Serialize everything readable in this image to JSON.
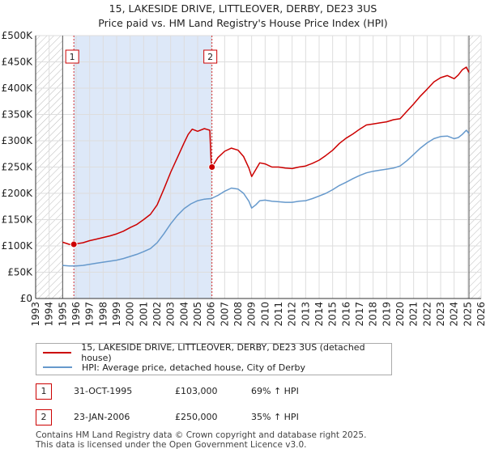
{
  "header": {
    "title_line1": "15, LAKESIDE DRIVE, LITTLEOVER, DERBY, DE23 3US",
    "title_line2": "Price paid vs. HM Land Registry's House Price Index (HPI)"
  },
  "colors": {
    "property": "#cc0000",
    "hpi": "#6699cc",
    "shade": "#dde8f8",
    "hatch": "#bbbbbb",
    "grid": "#dddddd"
  },
  "chart_data": {
    "type": "line",
    "title": "Price paid vs. HM Land Registry's House Price Index (HPI)",
    "xlabel": "",
    "ylabel": "",
    "xlim": [
      1993,
      2026
    ],
    "ylim": [
      0,
      500000
    ],
    "x_ticks": [
      1993,
      1994,
      1995,
      1996,
      1997,
      1998,
      1999,
      2000,
      2001,
      2002,
      2003,
      2004,
      2005,
      2006,
      2007,
      2008,
      2009,
      2010,
      2011,
      2012,
      2013,
      2014,
      2015,
      2016,
      2017,
      2018,
      2019,
      2020,
      2021,
      2022,
      2023,
      2024,
      2025,
      2026
    ],
    "y_ticks": [
      0,
      50000,
      100000,
      150000,
      200000,
      250000,
      300000,
      350000,
      400000,
      450000,
      500000
    ],
    "y_tick_labels": [
      "£0",
      "£50K",
      "£100K",
      "£150K",
      "£200K",
      "£250K",
      "£300K",
      "£350K",
      "£400K",
      "£450K",
      "£500K"
    ],
    "data_start": 1995.0,
    "data_end": 2025.1,
    "shaded_between_sales": [
      1995.83,
      2006.06
    ],
    "series": [
      {
        "name": "15, LAKESIDE DRIVE, LITTLEOVER, DERBY, DE23 3US (detached house)",
        "color": "#cc0000",
        "x": [
          1995.0,
          1995.5,
          1995.83,
          1996,
          1996.5,
          1997,
          1997.5,
          1998,
          1998.5,
          1999,
          1999.5,
          2000,
          2000.5,
          2001,
          2001.5,
          2002,
          2002.5,
          2003,
          2003.5,
          2004,
          2004.3,
          2004.6,
          2005,
          2005.5,
          2005.9,
          2006.0,
          2006.06,
          2006.5,
          2007,
          2007.5,
          2008,
          2008.4,
          2008.8,
          2009,
          2009.3,
          2009.6,
          2010,
          2010.5,
          2011,
          2011.5,
          2012,
          2012.5,
          2013,
          2013.5,
          2014,
          2014.5,
          2015,
          2015.5,
          2016,
          2016.5,
          2017,
          2017.5,
          2018,
          2018.5,
          2019,
          2019.5,
          2020,
          2020.5,
          2021,
          2021.5,
          2022,
          2022.5,
          2023,
          2023.5,
          2024,
          2024.3,
          2024.6,
          2024.9,
          2025.1
        ],
        "y": [
          107000,
          103000,
          103000,
          104000,
          106000,
          110000,
          113000,
          116000,
          119000,
          123000,
          128000,
          135000,
          141000,
          150000,
          160000,
          178000,
          208000,
          240000,
          268000,
          296000,
          312000,
          322000,
          318000,
          323000,
          320000,
          258000,
          250000,
          268000,
          280000,
          286000,
          282000,
          270000,
          248000,
          232000,
          245000,
          258000,
          256000,
          250000,
          250000,
          248000,
          247000,
          250000,
          252000,
          257000,
          263000,
          272000,
          282000,
          295000,
          305000,
          313000,
          322000,
          330000,
          332000,
          334000,
          336000,
          340000,
          342000,
          356000,
          370000,
          385000,
          398000,
          412000,
          420000,
          424000,
          418000,
          425000,
          435000,
          440000,
          430000
        ]
      },
      {
        "name": "HPI: Average price, detached house, City of Derby",
        "color": "#6699cc",
        "x": [
          1995.0,
          1995.5,
          1996,
          1996.5,
          1997,
          1997.5,
          1998,
          1998.5,
          1999,
          1999.5,
          2000,
          2000.5,
          2001,
          2001.5,
          2002,
          2002.5,
          2003,
          2003.5,
          2004,
          2004.5,
          2005,
          2005.5,
          2006,
          2006.5,
          2007,
          2007.5,
          2008,
          2008.4,
          2008.8,
          2009,
          2009.3,
          2009.6,
          2010,
          2010.5,
          2011,
          2011.5,
          2012,
          2012.5,
          2013,
          2013.5,
          2014,
          2014.5,
          2015,
          2015.5,
          2016,
          2016.5,
          2017,
          2017.5,
          2018,
          2018.5,
          2019,
          2019.5,
          2020,
          2020.5,
          2021,
          2021.5,
          2022,
          2022.5,
          2023,
          2023.5,
          2024,
          2024.3,
          2024.6,
          2024.9,
          2025.1
        ],
        "y": [
          63000,
          62000,
          62000,
          63000,
          65000,
          67000,
          69000,
          71000,
          73000,
          76000,
          80000,
          84000,
          89000,
          95000,
          106000,
          123000,
          142000,
          158000,
          171000,
          180000,
          186000,
          189000,
          190000,
          196000,
          204000,
          210000,
          208000,
          200000,
          185000,
          172000,
          178000,
          186000,
          187000,
          185000,
          184000,
          183000,
          183000,
          185000,
          186000,
          190000,
          195000,
          200000,
          207000,
          215000,
          221000,
          228000,
          234000,
          239000,
          242000,
          244000,
          246000,
          248000,
          252000,
          262000,
          274000,
          286000,
          296000,
          304000,
          308000,
          309000,
          304000,
          306000,
          312000,
          320000,
          314000
        ]
      }
    ],
    "sale_markers": [
      {
        "label": "1",
        "x": 1995.83,
        "y": 103000
      },
      {
        "label": "2",
        "x": 2006.06,
        "y": 250000
      }
    ],
    "legend_position": "below"
  },
  "legend": {
    "property_label": "15, LAKESIDE DRIVE, LITTLEOVER, DERBY, DE23 3US (detached house)",
    "hpi_label": "HPI: Average price, detached house, City of Derby"
  },
  "markers_table": [
    {
      "num": "1",
      "date": "31-OCT-1995",
      "price": "£103,000",
      "hpi": "69% ↑ HPI"
    },
    {
      "num": "2",
      "date": "23-JAN-2006",
      "price": "£250,000",
      "hpi": "35% ↑ HPI"
    }
  ],
  "footer": {
    "line1": "Contains HM Land Registry data © Crown copyright and database right 2025.",
    "line2": "This data is licensed under the Open Government Licence v3.0."
  }
}
